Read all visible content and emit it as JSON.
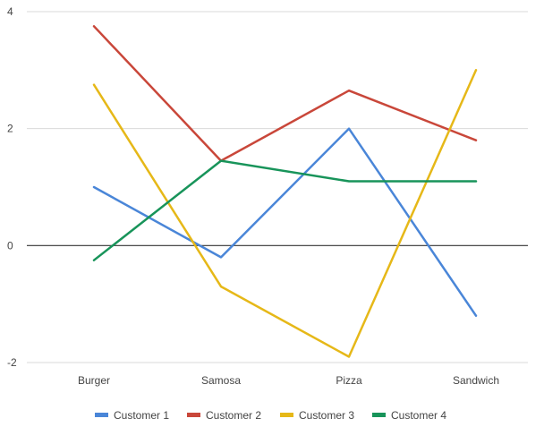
{
  "chart_data": {
    "type": "line",
    "categories": [
      "Burger",
      "Samosa",
      "Pizza",
      "Sandwich"
    ],
    "series": [
      {
        "name": "Customer 1",
        "color": "#4a86d8",
        "values": [
          1,
          -0.2,
          2,
          -1.2
        ]
      },
      {
        "name": "Customer 2",
        "color": "#c9473a",
        "values": [
          3.75,
          1.45,
          2.65,
          1.8
        ]
      },
      {
        "name": "Customer 3",
        "color": "#e6b818",
        "values": [
          2.75,
          -0.7,
          -1.9,
          3
        ]
      },
      {
        "name": "Customer 4",
        "color": "#18945a",
        "values": [
          -0.25,
          1.45,
          1.1,
          1.1
        ]
      }
    ],
    "yticks": [
      -2,
      0,
      2,
      4
    ],
    "ylim": [
      -2,
      4
    ],
    "grid": true,
    "legend_position": "bottom",
    "colors": {
      "gridline": "#d9d9d9",
      "zeroline": "#333333",
      "text": "#444444"
    }
  }
}
